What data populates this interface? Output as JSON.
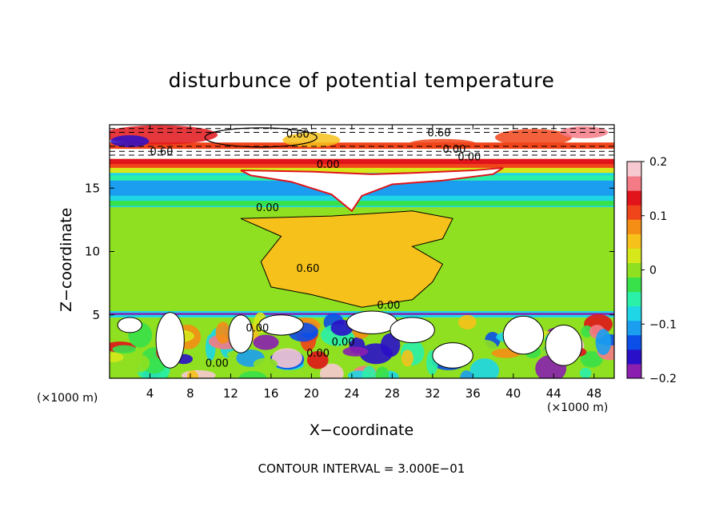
{
  "chart_data": {
    "type": "heatmap",
    "title": "disturbunce of potential temperature",
    "xlabel": "X−coordinate",
    "ylabel": "Z−coordinate",
    "x_unit_left": "(×1000 m)",
    "x_unit_right": "(×1000 m)",
    "xlim": [
      0,
      50
    ],
    "ylim": [
      0,
      20
    ],
    "x_ticks": [
      4,
      8,
      12,
      16,
      20,
      24,
      28,
      32,
      36,
      40,
      44,
      48
    ],
    "y_ticks": [
      5,
      10,
      15
    ],
    "colorbar": {
      "min": -0.2,
      "max": 0.2,
      "tick_values": [
        0.2,
        0.1,
        0,
        -0.1,
        -0.2
      ],
      "tick_labels": [
        "0.2",
        "0.1",
        "0",
        "−0.1",
        "−0.2"
      ],
      "colors": [
        "#8a1fb0",
        "#2a0fc8",
        "#0b4fe8",
        "#1b9ef0",
        "#1ed6e6",
        "#2bf0a8",
        "#38e14a",
        "#8fe020",
        "#d7e81a",
        "#f6c11a",
        "#f58e14",
        "#f0441a",
        "#e0141a",
        "#f47a86",
        "#f6c8d0"
      ]
    },
    "bands": [
      {
        "z_range": [
          0,
          4.8
        ],
        "description_value": "mixed"
      },
      {
        "z_range": [
          4.8,
          5.3
        ],
        "value": -0.08
      },
      {
        "z_range": [
          5.3,
          13.5
        ],
        "value": 0.0
      },
      {
        "z_range": [
          13.5,
          16.5
        ],
        "value": -0.07
      },
      {
        "z_range": [
          16.5,
          20
        ],
        "value": 0.1
      }
    ],
    "contour_labels": [
      "0.60",
      "0.60",
      "0.60",
      "0.00",
      "0.00",
      "0.60",
      "0.00",
      "0.00",
      "0.00",
      "0.00",
      "0.00",
      "0.00",
      "0.00"
    ],
    "contour_interval_text": "CONTOUR INTERVAL = 3.000E−01"
  },
  "labels": {
    "y_tick_labels": [
      "5",
      "10",
      "15"
    ],
    "x_tick_labels": [
      "4",
      "8",
      "12",
      "16",
      "20",
      "24",
      "28",
      "32",
      "36",
      "40",
      "44",
      "48"
    ]
  }
}
